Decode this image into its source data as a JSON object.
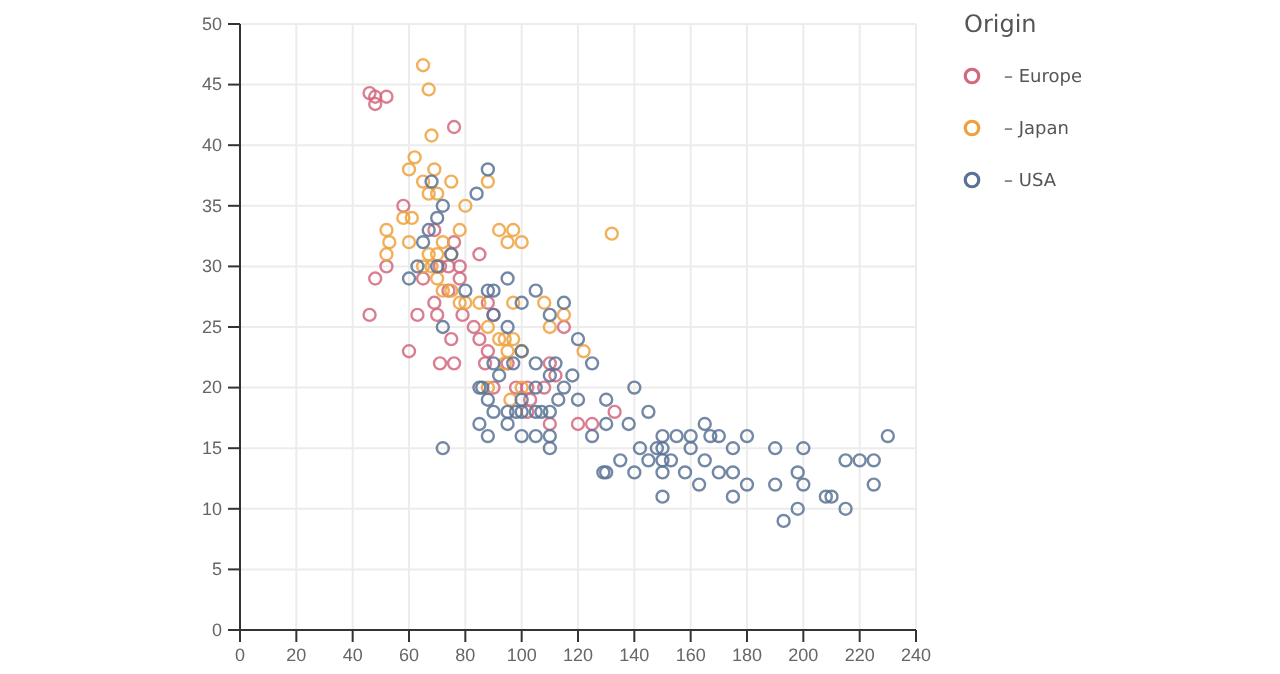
{
  "chart_data": {
    "type": "scatter",
    "legend_title": "Origin",
    "legend": "top right",
    "grid": true,
    "marker": "circle",
    "xlim": [
      0,
      240
    ],
    "xticks": [
      0,
      20,
      40,
      60,
      80,
      100,
      120,
      140,
      160,
      180,
      200,
      220,
      240
    ],
    "ylim": [
      0,
      50
    ],
    "yticks": [
      0,
      5,
      10,
      15,
      20,
      25,
      30,
      35,
      40,
      45,
      50
    ],
    "series": [
      {
        "name": "– Europe",
        "color": "#d2697e",
        "x": [
          46,
          46,
          48,
          48,
          52,
          76,
          52,
          71,
          74,
          78,
          79,
          83,
          88,
          90,
          95,
          102,
          103,
          110,
          115,
          120,
          125,
          133,
          63,
          65,
          69,
          70,
          75,
          76,
          60,
          87,
          98,
          102,
          71,
          74,
          58,
          69,
          76,
          78,
          85,
          88,
          90,
          112,
          48,
          85,
          110,
          108
        ],
        "values": [
          26,
          44.3,
          43.4,
          44,
          44,
          41.5,
          30,
          30,
          30,
          29,
          26,
          25,
          27,
          26,
          22,
          20,
          19,
          22,
          25,
          17,
          17,
          18,
          26,
          29,
          27,
          26,
          24,
          22,
          23,
          22,
          20,
          18,
          22,
          28,
          35,
          33,
          32,
          30,
          31,
          23,
          20,
          21,
          29,
          24,
          17,
          20
        ]
      },
      {
        "name": "– Japan",
        "color": "#eea23e",
        "x": [
          65,
          67,
          68,
          62,
          60,
          65,
          67,
          69,
          70,
          75,
          78,
          80,
          88,
          92,
          95,
          97,
          100,
          132,
          52,
          53,
          52,
          58,
          60,
          67,
          68,
          70,
          72,
          75,
          75,
          78,
          80,
          85,
          88,
          92,
          94,
          95,
          97,
          97,
          100,
          108,
          110,
          115,
          122,
          65,
          61,
          70,
          72,
          88,
          94,
          96,
          100
        ],
        "values": [
          46.6,
          44.6,
          40.8,
          39,
          38,
          37,
          36,
          38,
          36,
          37,
          33,
          35,
          37,
          33,
          32,
          33,
          32,
          32.7,
          33,
          32,
          31,
          34,
          32,
          31,
          30,
          31,
          32,
          31,
          28,
          27,
          27,
          27,
          25,
          24,
          24,
          23,
          24,
          27,
          23,
          27,
          25,
          26,
          23,
          30,
          34,
          29,
          28,
          20,
          22,
          19,
          20
        ]
      },
      {
        "name": "– USA",
        "color": "#5a7394",
        "x": [
          72,
          60,
          63,
          65,
          67,
          68,
          70,
          70,
          72,
          75,
          80,
          84,
          88,
          88,
          90,
          90,
          90,
          95,
          95,
          97,
          98,
          100,
          100,
          100,
          105,
          105,
          110,
          110,
          110,
          112,
          115,
          120,
          125,
          130,
          140,
          145,
          150,
          150,
          150,
          150,
          160,
          165,
          170,
          175,
          180,
          190,
          198,
          200,
          208,
          210,
          215,
          220,
          225,
          225,
          230,
          193,
          198,
          150,
          140,
          129,
          130,
          135,
          142,
          145,
          148,
          155,
          160,
          165,
          167,
          170,
          175,
          180,
          190,
          215,
          86,
          88,
          90,
          95,
          105,
          110,
          72,
          85,
          100,
          105,
          110,
          115,
          120,
          118,
          105,
          85,
          88,
          92,
          95,
          100,
          107,
          113,
          125,
          130,
          138,
          153,
          158,
          163,
          175,
          200
        ],
        "values": [
          15,
          29,
          30,
          32,
          33,
          37,
          34,
          30,
          35,
          31,
          28,
          36,
          38,
          28,
          28,
          26,
          22,
          29,
          25,
          22,
          18,
          23,
          19,
          16,
          20,
          18,
          21,
          18,
          16,
          22,
          20,
          19,
          16,
          17,
          20,
          18,
          14,
          15,
          16,
          13,
          15,
          14,
          13,
          13,
          12,
          12,
          13,
          15,
          11,
          11,
          10,
          14,
          14,
          12,
          16,
          9,
          10,
          11,
          13,
          13,
          13,
          14,
          15,
          14,
          15,
          16,
          16,
          17,
          16,
          16,
          15,
          16,
          15,
          14,
          20,
          19,
          18,
          17,
          16,
          15,
          25,
          20,
          27,
          28,
          26,
          27,
          24,
          21,
          22,
          17,
          16,
          21,
          18,
          18,
          18,
          19,
          22,
          19,
          17,
          14,
          13,
          12,
          11,
          12
        ]
      }
    ]
  }
}
